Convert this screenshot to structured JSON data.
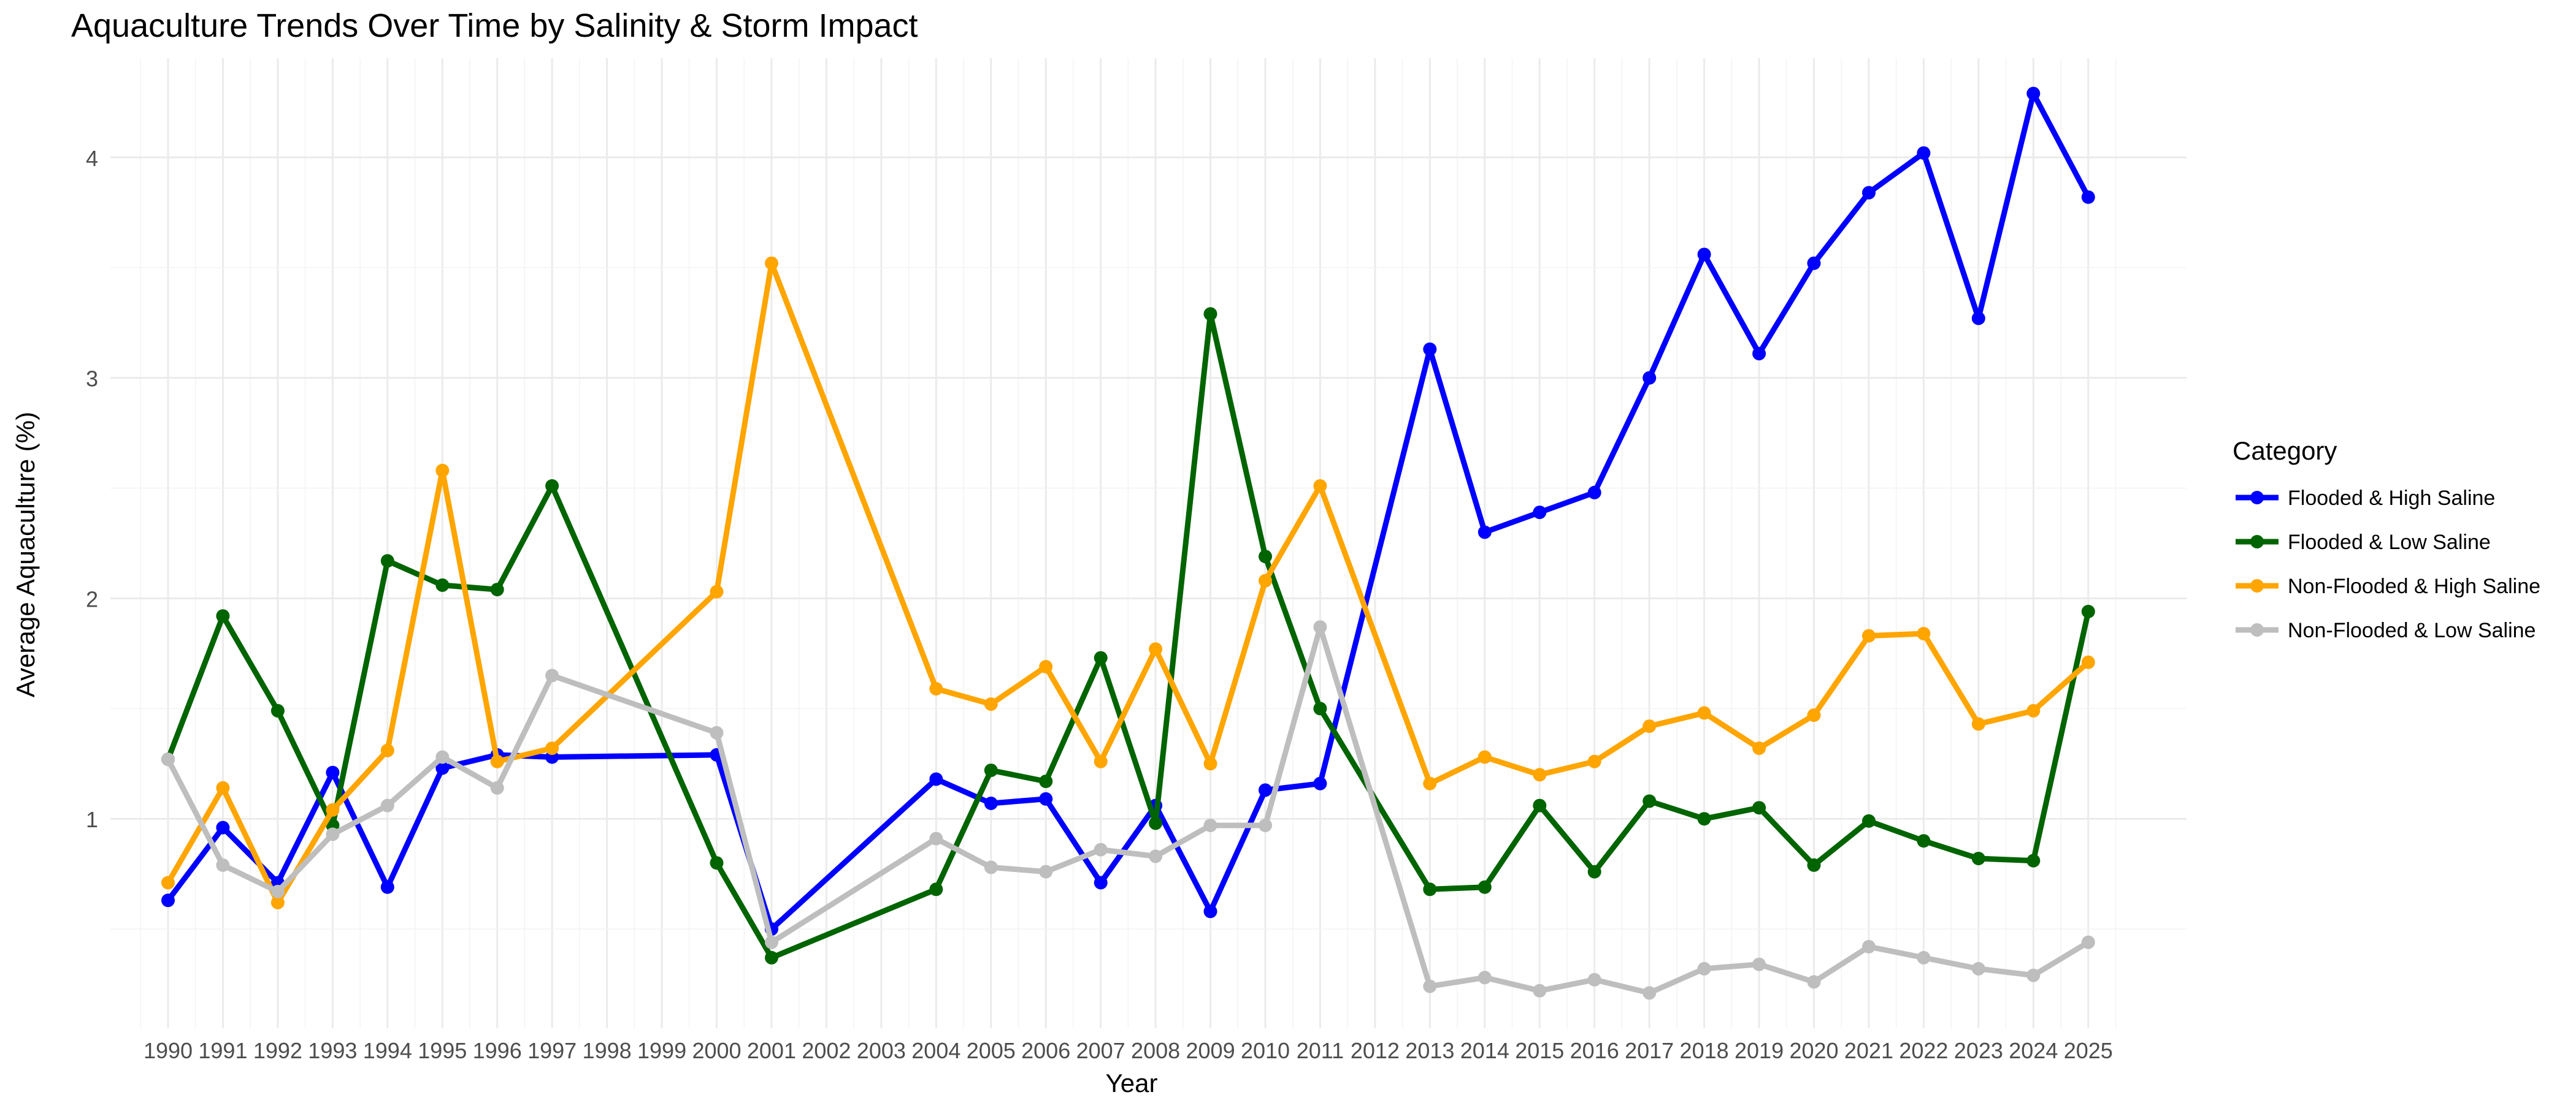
{
  "chart_data": {
    "type": "line",
    "title": "Aquaculture Trends Over Time by Salinity & Storm Impact",
    "xlabel": "Year",
    "ylabel": "Average Aquaculture (%)",
    "x_categories": [
      1990,
      1991,
      1992,
      1993,
      1994,
      1995,
      1996,
      1997,
      1998,
      1999,
      2000,
      2001,
      2002,
      2003,
      2004,
      2005,
      2006,
      2007,
      2008,
      2009,
      2010,
      2011,
      2012,
      2013,
      2014,
      2015,
      2016,
      2017,
      2018,
      2019,
      2020,
      2021,
      2022,
      2023,
      2024,
      2025
    ],
    "y_ticks": [
      1,
      2,
      3,
      4
    ],
    "ylim": [
      0.05,
      4.45
    ],
    "grid": true,
    "legend": {
      "title": "Category",
      "position": "right"
    },
    "series": [
      {
        "name": "Flooded & High Saline",
        "color": "#0000ff",
        "points": [
          [
            1990,
            0.63
          ],
          [
            1991,
            0.96
          ],
          [
            1992,
            0.71
          ],
          [
            1993,
            1.21
          ],
          [
            1994,
            0.69
          ],
          [
            1995,
            1.23
          ],
          [
            1996,
            1.29
          ],
          [
            1997,
            1.28
          ],
          [
            2000,
            1.29
          ],
          [
            2001,
            0.5
          ],
          [
            2004,
            1.18
          ],
          [
            2005,
            1.07
          ],
          [
            2006,
            1.09
          ],
          [
            2007,
            0.71
          ],
          [
            2008,
            1.06
          ],
          [
            2009,
            0.58
          ],
          [
            2010,
            1.13
          ],
          [
            2011,
            1.16
          ],
          [
            2013,
            3.13
          ],
          [
            2014,
            2.3
          ],
          [
            2015,
            2.39
          ],
          [
            2016,
            2.48
          ],
          [
            2017,
            3.0
          ],
          [
            2018,
            3.56
          ],
          [
            2019,
            3.11
          ],
          [
            2020,
            3.52
          ],
          [
            2021,
            3.84
          ],
          [
            2022,
            4.02
          ],
          [
            2023,
            3.27
          ],
          [
            2024,
            4.29
          ],
          [
            2025,
            3.82
          ]
        ]
      },
      {
        "name": "Flooded & Low Saline",
        "color": "#006400",
        "points": [
          [
            1990,
            1.27
          ],
          [
            1991,
            1.92
          ],
          [
            1992,
            1.49
          ],
          [
            1993,
            0.97
          ],
          [
            1994,
            2.17
          ],
          [
            1995,
            2.06
          ],
          [
            1996,
            2.04
          ],
          [
            1997,
            2.51
          ],
          [
            2000,
            0.8
          ],
          [
            2001,
            0.37
          ],
          [
            2004,
            0.68
          ],
          [
            2005,
            1.22
          ],
          [
            2006,
            1.17
          ],
          [
            2007,
            1.73
          ],
          [
            2008,
            0.98
          ],
          [
            2009,
            3.29
          ],
          [
            2010,
            2.19
          ],
          [
            2011,
            1.5
          ],
          [
            2013,
            0.68
          ],
          [
            2014,
            0.69
          ],
          [
            2015,
            1.06
          ],
          [
            2016,
            0.76
          ],
          [
            2017,
            1.08
          ],
          [
            2018,
            1.0
          ],
          [
            2019,
            1.05
          ],
          [
            2020,
            0.79
          ],
          [
            2021,
            0.99
          ],
          [
            2022,
            0.9
          ],
          [
            2023,
            0.82
          ],
          [
            2024,
            0.81
          ],
          [
            2025,
            1.94
          ]
        ]
      },
      {
        "name": "Non-Flooded & High Saline",
        "color": "#ffa500",
        "points": [
          [
            1990,
            0.71
          ],
          [
            1991,
            1.14
          ],
          [
            1992,
            0.62
          ],
          [
            1993,
            1.04
          ],
          [
            1994,
            1.31
          ],
          [
            1995,
            2.58
          ],
          [
            1996,
            1.26
          ],
          [
            1997,
            1.32
          ],
          [
            2000,
            2.03
          ],
          [
            2001,
            3.52
          ],
          [
            2004,
            1.59
          ],
          [
            2005,
            1.52
          ],
          [
            2006,
            1.69
          ],
          [
            2007,
            1.26
          ],
          [
            2008,
            1.77
          ],
          [
            2009,
            1.25
          ],
          [
            2010,
            2.08
          ],
          [
            2011,
            2.51
          ],
          [
            2013,
            1.16
          ],
          [
            2014,
            1.28
          ],
          [
            2015,
            1.2
          ],
          [
            2016,
            1.26
          ],
          [
            2017,
            1.42
          ],
          [
            2018,
            1.48
          ],
          [
            2019,
            1.32
          ],
          [
            2020,
            1.47
          ],
          [
            2021,
            1.83
          ],
          [
            2022,
            1.84
          ],
          [
            2023,
            1.43
          ],
          [
            2024,
            1.49
          ],
          [
            2025,
            1.71
          ]
        ]
      },
      {
        "name": "Non-Flooded & Low Saline",
        "color": "#bebebe",
        "points": [
          [
            1990,
            1.27
          ],
          [
            1991,
            0.79
          ],
          [
            1992,
            0.67
          ],
          [
            1993,
            0.93
          ],
          [
            1994,
            1.06
          ],
          [
            1995,
            1.28
          ],
          [
            1996,
            1.14
          ],
          [
            1997,
            1.65
          ],
          [
            2000,
            1.39
          ],
          [
            2001,
            0.44
          ],
          [
            2004,
            0.91
          ],
          [
            2005,
            0.78
          ],
          [
            2006,
            0.76
          ],
          [
            2007,
            0.86
          ],
          [
            2008,
            0.83
          ],
          [
            2009,
            0.97
          ],
          [
            2010,
            0.97
          ],
          [
            2011,
            1.87
          ],
          [
            2013,
            0.24
          ],
          [
            2014,
            0.28
          ],
          [
            2015,
            0.22
          ],
          [
            2016,
            0.27
          ],
          [
            2017,
            0.21
          ],
          [
            2018,
            0.32
          ],
          [
            2019,
            0.34
          ],
          [
            2020,
            0.26
          ],
          [
            2021,
            0.42
          ],
          [
            2022,
            0.37
          ],
          [
            2023,
            0.32
          ],
          [
            2024,
            0.29
          ],
          [
            2025,
            0.44
          ]
        ]
      }
    ]
  }
}
